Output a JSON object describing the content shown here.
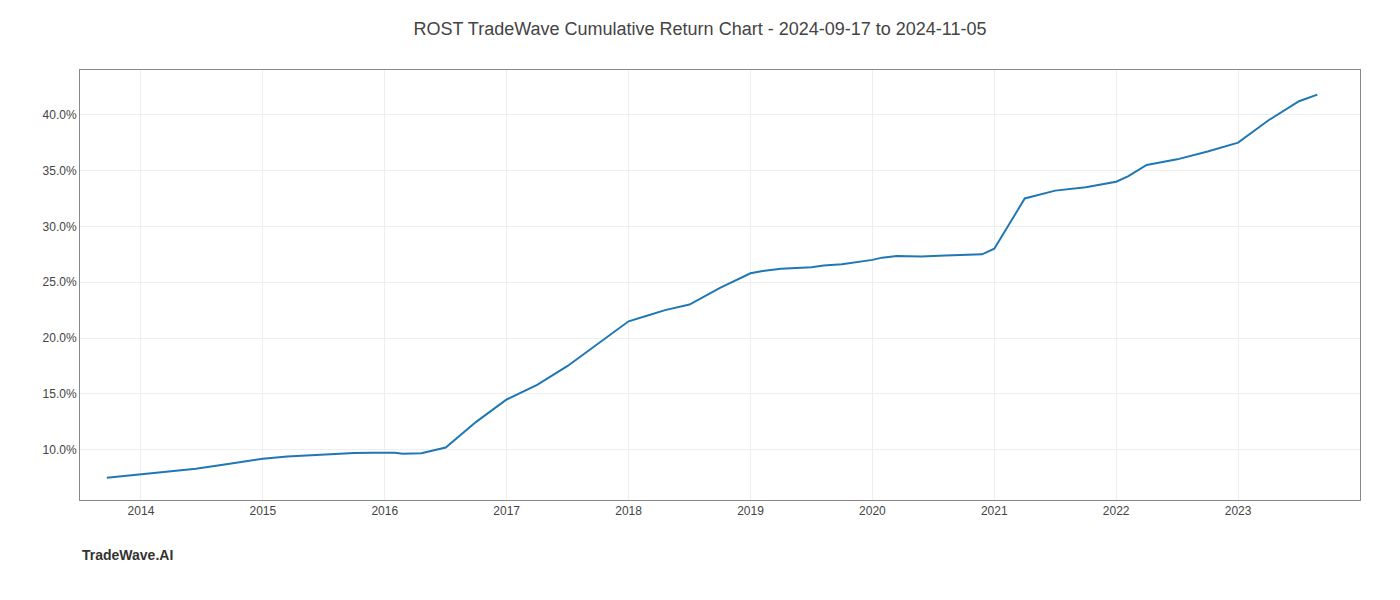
{
  "chart_data": {
    "type": "line",
    "title": "ROST TradeWave Cumulative Return Chart - 2024-09-17 to 2024-11-05",
    "annotations": [
      {
        "text": "TradeWave.AI"
      }
    ],
    "x": [
      2013.72,
      2014.0,
      2014.2,
      2014.45,
      2014.7,
      2015.0,
      2015.2,
      2015.5,
      2015.75,
      2015.9,
      2016.0,
      2016.08,
      2016.15,
      2016.3,
      2016.5,
      2016.75,
      2017.0,
      2017.25,
      2017.5,
      2017.75,
      2018.0,
      2018.15,
      2018.3,
      2018.5,
      2018.75,
      2019.0,
      2019.1,
      2019.25,
      2019.5,
      2019.6,
      2019.75,
      2020.0,
      2020.08,
      2020.2,
      2020.4,
      2020.6,
      2020.75,
      2020.9,
      2021.0,
      2021.25,
      2021.5,
      2021.75,
      2022.0,
      2022.1,
      2022.25,
      2022.5,
      2022.75,
      2023.0,
      2023.25,
      2023.5,
      2023.65
    ],
    "values": [
      7.5,
      7.8,
      8.0,
      8.3,
      8.7,
      9.2,
      9.4,
      9.6,
      9.7,
      9.72,
      9.75,
      9.72,
      9.65,
      9.68,
      10.2,
      12.5,
      14.5,
      15.8,
      17.5,
      19.5,
      21.5,
      22.0,
      22.5,
      23.0,
      24.5,
      25.8,
      26.0,
      26.2,
      26.35,
      26.5,
      26.6,
      27.0,
      27.2,
      27.35,
      27.3,
      27.4,
      27.45,
      27.5,
      28.0,
      32.5,
      33.2,
      33.5,
      34.0,
      34.5,
      35.5,
      36.0,
      36.7,
      37.5,
      39.5,
      41.2,
      41.8
    ],
    "color": "#1f77b4",
    "xlim": [
      2013.5,
      2024.0
    ],
    "ylim": [
      5.5,
      44
    ],
    "xticks": [
      2014,
      2015,
      2016,
      2017,
      2018,
      2019,
      2020,
      2021,
      2022,
      2023
    ],
    "yticks": [
      {
        "value": 10.0,
        "label": "10.0%"
      },
      {
        "value": 15.0,
        "label": "15.0%"
      },
      {
        "value": 20.0,
        "label": "20.0%"
      },
      {
        "value": 25.0,
        "label": "25.0%"
      },
      {
        "value": 30.0,
        "label": "30.0%"
      },
      {
        "value": 35.0,
        "label": "35.0%"
      },
      {
        "value": 40.0,
        "label": "40.0%"
      }
    ],
    "grid": true
  }
}
